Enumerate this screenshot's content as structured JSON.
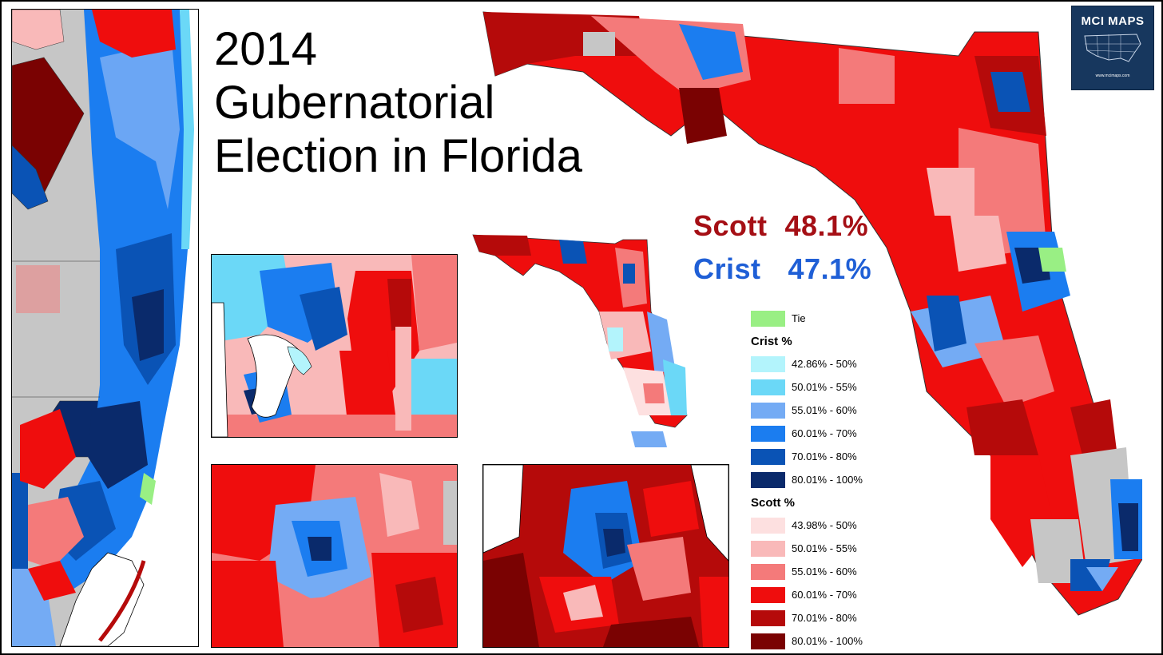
{
  "title": {
    "line1": "2014",
    "line2": "Gubernatorial",
    "line3": "Election in Florida"
  },
  "results": {
    "scott": {
      "name": "Scott",
      "pct": "48.1%",
      "color": "#a50f15"
    },
    "crist": {
      "name": "Crist",
      "pct": "47.1%",
      "color": "#1f5fd6"
    }
  },
  "logo": {
    "text": "MCI MAPS",
    "url": "www.mcimaps.com",
    "icon": "us-map-icon"
  },
  "legend": {
    "tie": {
      "label": "Tie",
      "color": "#99ef84"
    },
    "crist_heading": "Crist %",
    "crist": [
      {
        "label": "42.86% - 50%",
        "color": "#b3f4fc"
      },
      {
        "label": "50.01% - 55%",
        "color": "#6bd8f7"
      },
      {
        "label": "55.01% - 60%",
        "color": "#74abf4"
      },
      {
        "label": "60.01% - 70%",
        "color": "#1b7df0"
      },
      {
        "label": "70.01% - 80%",
        "color": "#0a53b5"
      },
      {
        "label": "80.01% - 100%",
        "color": "#0a2a6b"
      }
    ],
    "scott_heading": "Scott %",
    "scott": [
      {
        "label": "43.98% - 50%",
        "color": "#fde0e0"
      },
      {
        "label": "50.01% - 55%",
        "color": "#f9b9b9"
      },
      {
        "label": "55.01% - 60%",
        "color": "#f47a7a"
      },
      {
        "label": "60.01% - 70%",
        "color": "#ef0d0d"
      },
      {
        "label": "70.01% - 80%",
        "color": "#b50a0a"
      },
      {
        "label": "80.01% - 100%",
        "color": "#7a0202"
      }
    ]
  },
  "no_data_color": "#c6c6c6"
}
